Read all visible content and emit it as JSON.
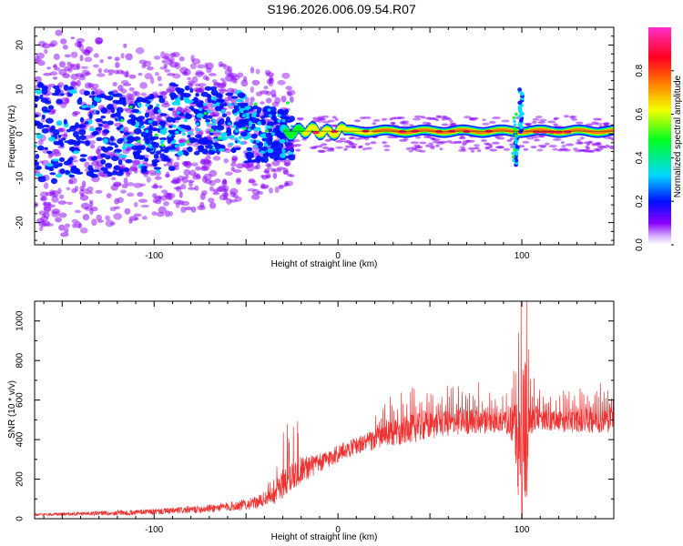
{
  "title": "S196.2026.006.09.54.R07",
  "colors": {
    "snr_line": "#ee3333",
    "axis": "#000000",
    "cb_stops": [
      "#ffffff",
      "#8a00ff",
      "#0010ff",
      "#00d8ff",
      "#00ff20",
      "#f4ff00",
      "#ff8000",
      "#ff0020",
      "#ff1c7a",
      "#ff2fd0"
    ]
  },
  "chart_data": [
    {
      "type": "heatmap",
      "xlabel": "Height of straight line (km)",
      "ylabel": "Frequency (Hz)",
      "xlim": [
        -165,
        150
      ],
      "ylim": [
        -25,
        24
      ],
      "xticks": [
        "-100",
        "0",
        "100"
      ],
      "yticks": [
        "20",
        "10",
        "0",
        "-10",
        "-20"
      ],
      "colorbar_label": "Normalized spectral amplitude",
      "colorbar_range": [
        0,
        1
      ],
      "colorbar_ticks": [
        "0.0",
        "0.2",
        "0.4",
        "0.6",
        "0.8"
      ],
      "description": "spectral track near 0 Hz from about -30 km to 150 km; scattered weak signal below -30 km; disturbance near 100 km spanning about -7 to 10 Hz"
    },
    {
      "type": "line",
      "xlabel": "Height of straight line (km)",
      "ylabel": "SNR (10 * v/v)",
      "xlim": [
        -165,
        150
      ],
      "ylim": [
        0,
        1100
      ],
      "xticks": [
        "-100",
        "0",
        "100"
      ],
      "yticks": [
        "0",
        "200",
        "400",
        "600",
        "800",
        "1000"
      ],
      "series": [
        {
          "name": "SNR",
          "x": [
            -165,
            -140,
            -120,
            -100,
            -80,
            -60,
            -45,
            -35,
            -28,
            -20,
            -10,
            0,
            10,
            20,
            30,
            40,
            50,
            60,
            70,
            80,
            90,
            95,
            98,
            100,
            102,
            105,
            110,
            120,
            130,
            140,
            150
          ],
          "base": [
            20,
            25,
            30,
            35,
            45,
            60,
            80,
            120,
            200,
            250,
            280,
            330,
            370,
            400,
            430,
            455,
            470,
            480,
            490,
            490,
            490,
            480,
            350,
            200,
            250,
            520,
            500,
            490,
            495,
            500,
            505
          ],
          "noise": [
            10,
            15,
            20,
            25,
            30,
            40,
            50,
            80,
            150,
            120,
            80,
            80,
            70,
            90,
            110,
            120,
            120,
            110,
            110,
            100,
            90,
            150,
            400,
            500,
            400,
            150,
            80,
            90,
            100,
            110,
            110
          ]
        }
      ]
    }
  ]
}
